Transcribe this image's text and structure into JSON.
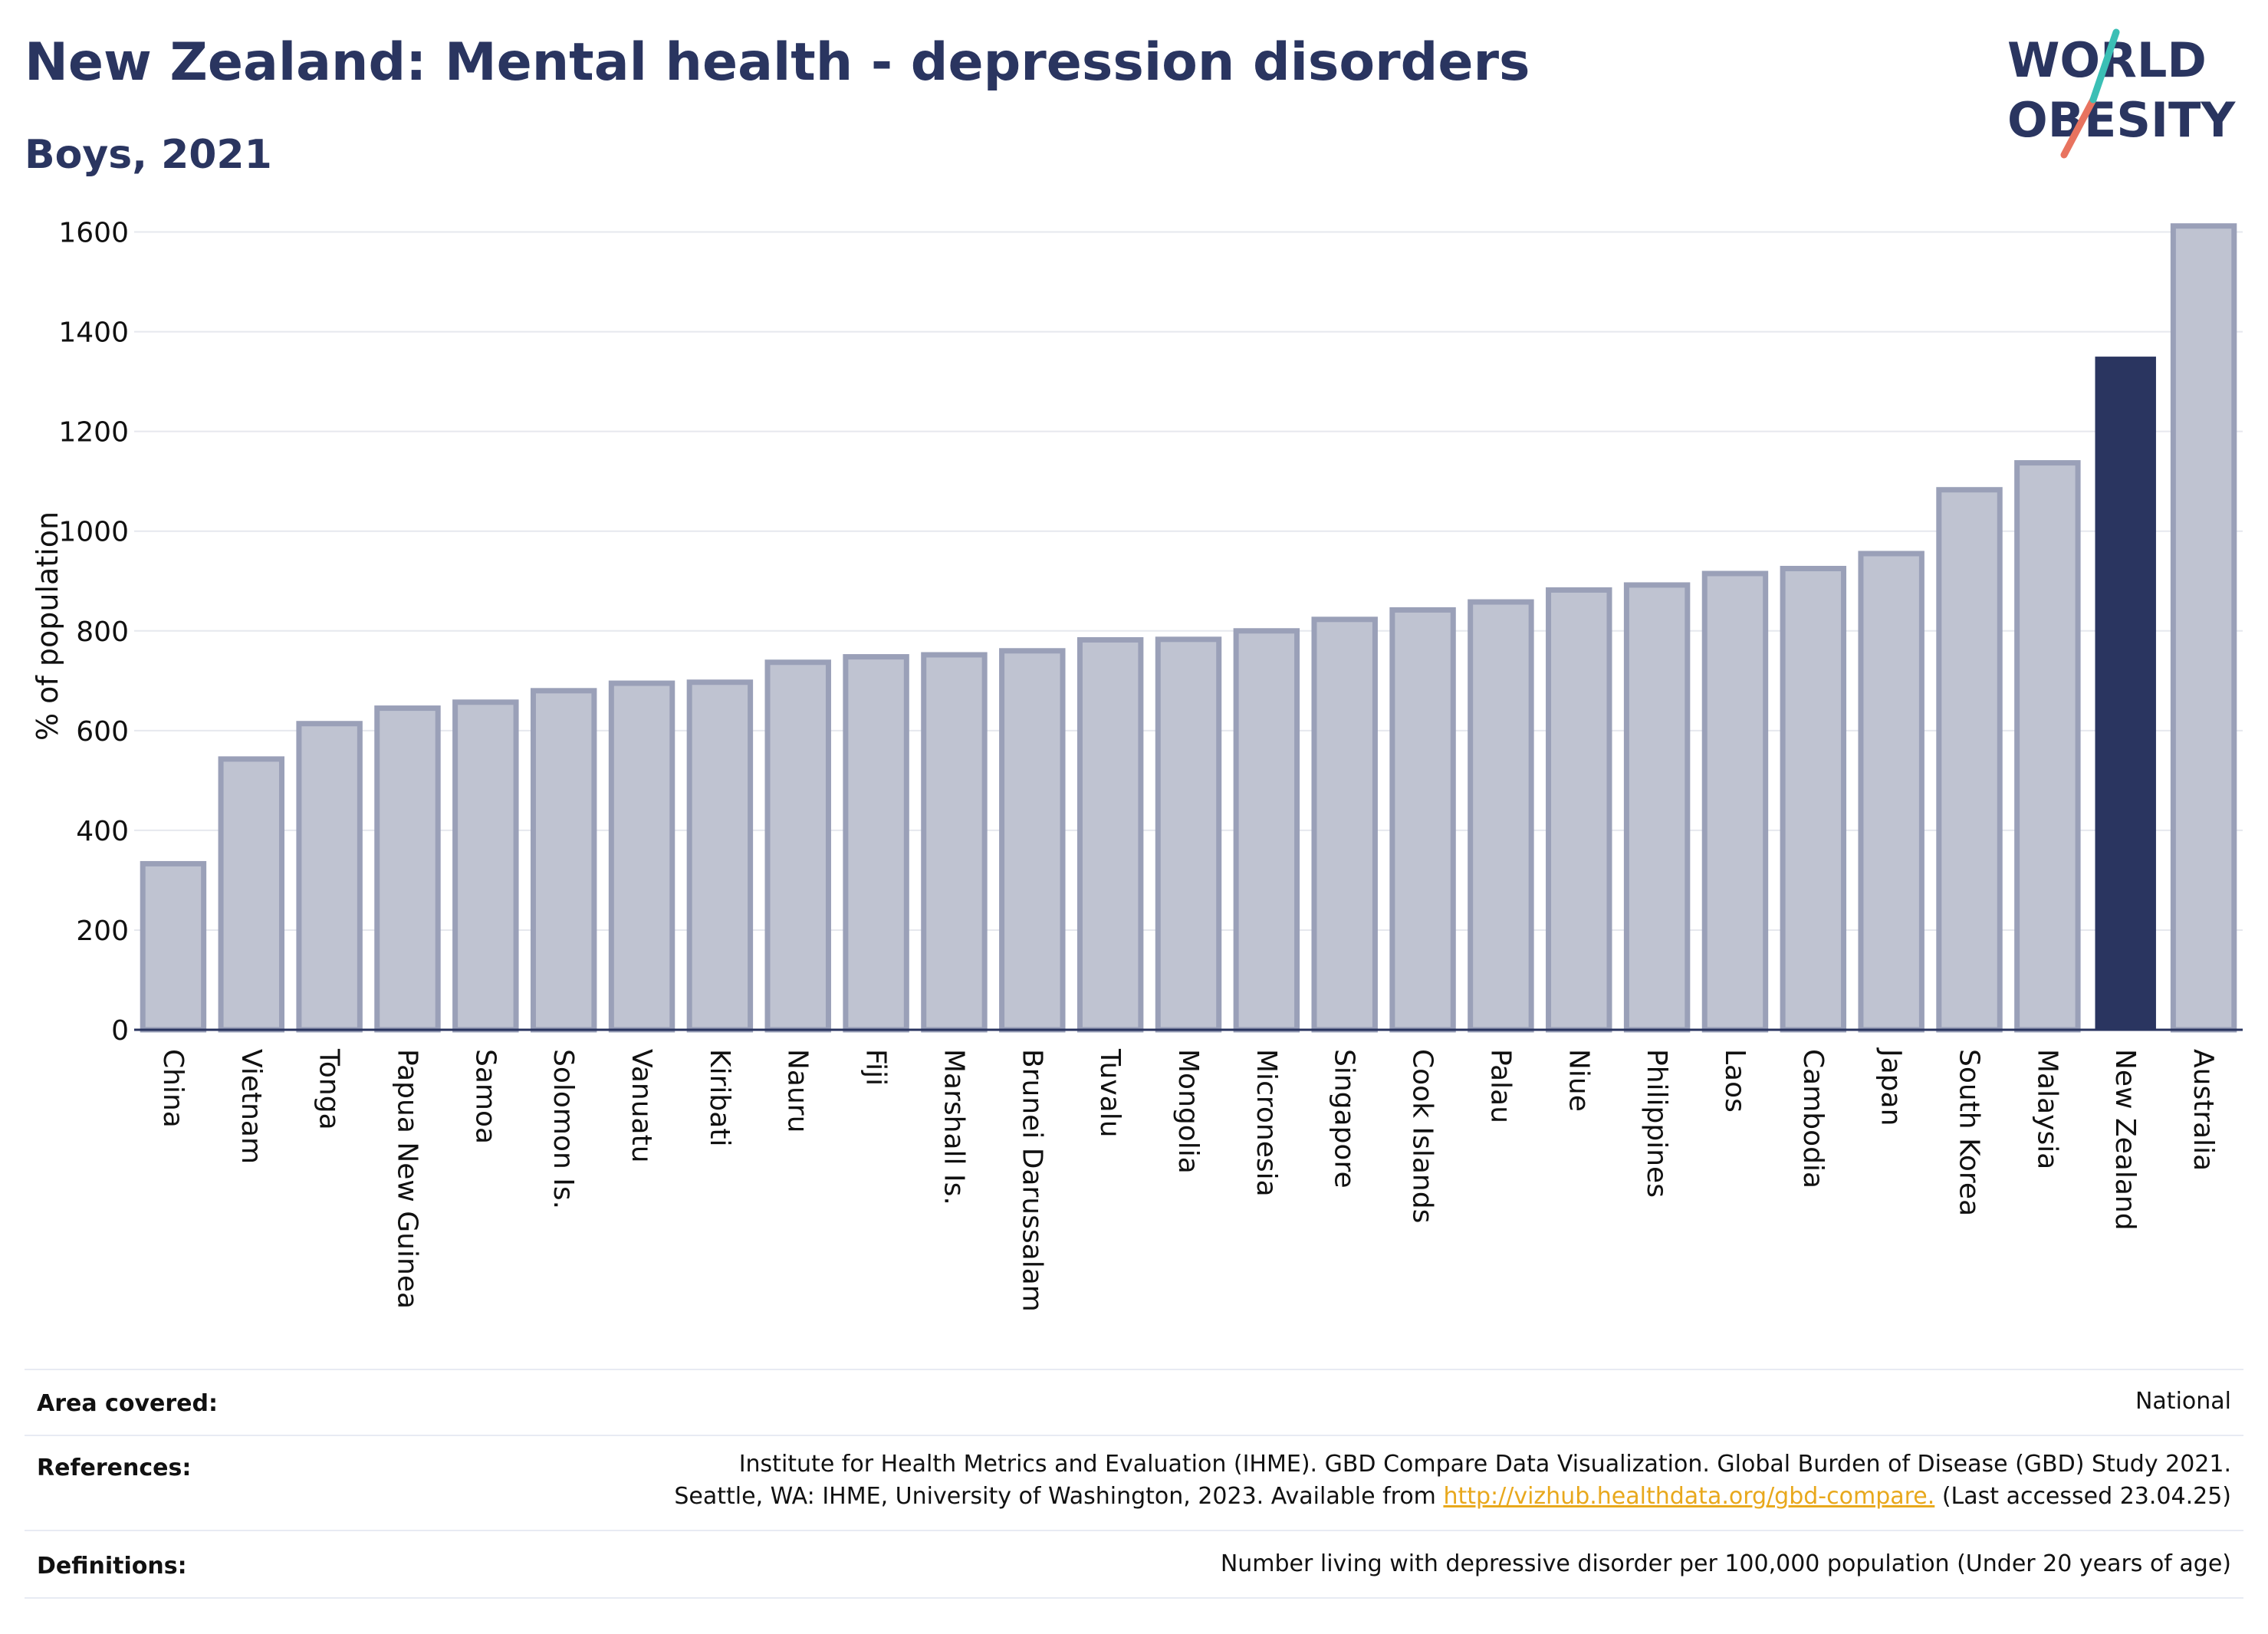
{
  "header": {
    "title": "New Zealand: Mental health - depression disorders",
    "subtitle": "Boys, 2021",
    "logo_line1": "WORLD",
    "logo_line2": "OBESITY"
  },
  "colors": {
    "bar": "#bfc3d1",
    "bar_border": "#9aa0b8",
    "highlight": "#2a3560",
    "grid": "#e6e8ee",
    "link": "#e8a81c"
  },
  "chart_data": {
    "type": "bar",
    "ylabel": "% of population",
    "ylim": [
      0,
      1650
    ],
    "yticks": [
      0,
      200,
      400,
      600,
      800,
      1000,
      1200,
      1400,
      1600
    ],
    "grid": true,
    "highlight": "New Zealand",
    "categories": [
      "China",
      "Vietnam",
      "Tonga",
      "Papua New Guinea",
      "Samoa",
      "Solomon Is.",
      "Vanuatu",
      "Kiribati",
      "Nauru",
      "Fiji",
      "Marshall Is.",
      "Brunei Darussalam",
      "Tuvalu",
      "Mongolia",
      "Micronesia",
      "Singapore",
      "Cook Islands",
      "Palau",
      "Niue",
      "Philippines",
      "Laos",
      "Cambodia",
      "Japan",
      "South Korea",
      "Malaysia",
      "New Zealand",
      "Australia"
    ],
    "values": [
      333,
      543,
      614,
      645,
      657,
      680,
      695,
      697,
      737,
      748,
      752,
      760,
      782,
      783,
      800,
      823,
      842,
      858,
      882,
      892,
      915,
      925,
      955,
      1083,
      1137,
      1350,
      1612
    ]
  },
  "info": {
    "area_label": "Area covered:",
    "area_value": "National",
    "references_label": "References:",
    "references_line1": "Institute for Health Metrics and Evaluation (IHME). GBD Compare Data Visualization. Global Burden of Disease (GBD) Study 2021.",
    "references_line2_pre": "Seattle, WA: IHME, University of Washington, 2023. Available from ",
    "references_link": "http://vizhub.healthdata.org/gbd-compare.",
    "references_line2_post": " (Last accessed 23.04.25)",
    "definitions_label": "Definitions:",
    "definitions_value": "Number living with depressive disorder per 100,000 population (Under 20 years of age)"
  }
}
